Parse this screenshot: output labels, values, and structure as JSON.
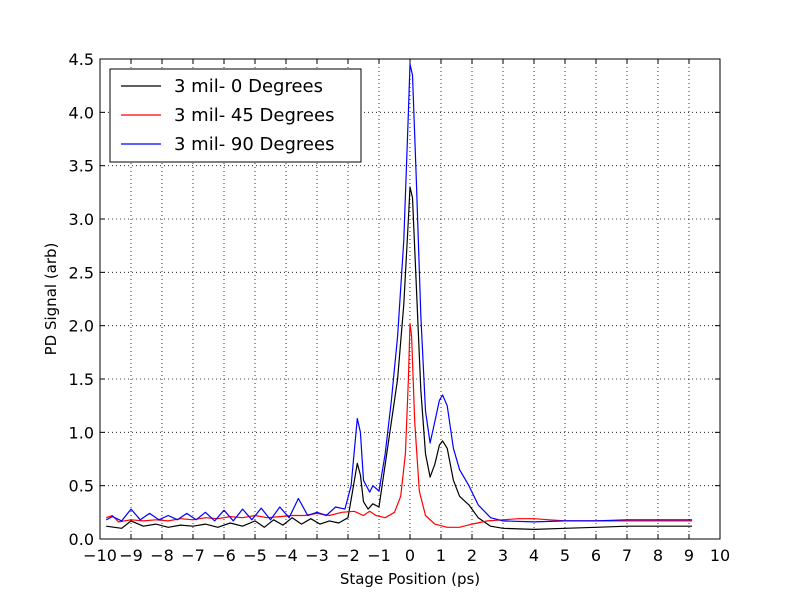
{
  "chart_data": {
    "type": "line",
    "xlabel": "Stage Position (ps)",
    "ylabel": "PD Signal (arb)",
    "xlim": [
      -10,
      10
    ],
    "ylim": [
      0.0,
      4.5
    ],
    "grid": true,
    "legend_placement": "top-left",
    "x_ticks": [
      "−10",
      "−9",
      "−8",
      "−7",
      "−6",
      "−5",
      "−4",
      "−3",
      "−2",
      "−1",
      "0",
      "1",
      "2",
      "3",
      "4",
      "5",
      "6",
      "7",
      "8",
      "9",
      "10"
    ],
    "y_ticks": [
      "0.0",
      "0.5",
      "1.0",
      "1.5",
      "2.0",
      "2.5",
      "3.0",
      "3.5",
      "4.0",
      "4.5"
    ],
    "series": [
      {
        "name": "3 mil- 0 Degrees",
        "color": "#000000",
        "points": [
          [
            -9.8,
            0.12
          ],
          [
            -9.3,
            0.1
          ],
          [
            -9.0,
            0.17
          ],
          [
            -8.6,
            0.12
          ],
          [
            -8.2,
            0.14
          ],
          [
            -7.8,
            0.11
          ],
          [
            -7.4,
            0.13
          ],
          [
            -7.0,
            0.12
          ],
          [
            -6.6,
            0.14
          ],
          [
            -6.2,
            0.11
          ],
          [
            -5.8,
            0.15
          ],
          [
            -5.4,
            0.12
          ],
          [
            -5.0,
            0.17
          ],
          [
            -4.7,
            0.11
          ],
          [
            -4.4,
            0.18
          ],
          [
            -4.1,
            0.13
          ],
          [
            -3.8,
            0.2
          ],
          [
            -3.5,
            0.14
          ],
          [
            -3.2,
            0.19
          ],
          [
            -2.9,
            0.14
          ],
          [
            -2.6,
            0.17
          ],
          [
            -2.3,
            0.15
          ],
          [
            -2.0,
            0.2
          ],
          [
            -1.85,
            0.45
          ],
          [
            -1.7,
            0.71
          ],
          [
            -1.6,
            0.6
          ],
          [
            -1.5,
            0.35
          ],
          [
            -1.35,
            0.28
          ],
          [
            -1.2,
            0.33
          ],
          [
            -1.0,
            0.3
          ],
          [
            -0.8,
            0.7
          ],
          [
            -0.6,
            1.1
          ],
          [
            -0.4,
            1.5
          ],
          [
            -0.2,
            2.2
          ],
          [
            -0.05,
            3.0
          ],
          [
            0.0,
            3.3
          ],
          [
            0.08,
            3.2
          ],
          [
            0.2,
            2.4
          ],
          [
            0.35,
            1.4
          ],
          [
            0.5,
            0.8
          ],
          [
            0.65,
            0.58
          ],
          [
            0.8,
            0.7
          ],
          [
            0.95,
            0.88
          ],
          [
            1.05,
            0.92
          ],
          [
            1.2,
            0.85
          ],
          [
            1.4,
            0.55
          ],
          [
            1.6,
            0.4
          ],
          [
            1.9,
            0.32
          ],
          [
            2.2,
            0.2
          ],
          [
            2.6,
            0.12
          ],
          [
            3.0,
            0.1
          ],
          [
            4.0,
            0.09
          ],
          [
            5.0,
            0.1
          ],
          [
            6.0,
            0.11
          ],
          [
            7.0,
            0.12
          ],
          [
            8.0,
            0.12
          ],
          [
            9.1,
            0.12
          ]
        ]
      },
      {
        "name": "3 mil- 45 Degrees",
        "color": "#ff0000",
        "points": [
          [
            -9.8,
            0.2
          ],
          [
            -9.6,
            0.22
          ],
          [
            -9.4,
            0.16
          ],
          [
            -9.0,
            0.18
          ],
          [
            -8.6,
            0.17
          ],
          [
            -8.2,
            0.18
          ],
          [
            -7.8,
            0.17
          ],
          [
            -7.4,
            0.19
          ],
          [
            -7.0,
            0.18
          ],
          [
            -6.6,
            0.2
          ],
          [
            -6.2,
            0.19
          ],
          [
            -5.8,
            0.21
          ],
          [
            -5.4,
            0.2
          ],
          [
            -5.0,
            0.22
          ],
          [
            -4.6,
            0.2
          ],
          [
            -4.2,
            0.21
          ],
          [
            -3.8,
            0.22
          ],
          [
            -3.4,
            0.22
          ],
          [
            -3.0,
            0.24
          ],
          [
            -2.6,
            0.22
          ],
          [
            -2.2,
            0.25
          ],
          [
            -1.8,
            0.26
          ],
          [
            -1.5,
            0.22
          ],
          [
            -1.3,
            0.26
          ],
          [
            -1.1,
            0.22
          ],
          [
            -0.8,
            0.2
          ],
          [
            -0.5,
            0.25
          ],
          [
            -0.3,
            0.4
          ],
          [
            -0.15,
            0.8
          ],
          [
            -0.05,
            1.5
          ],
          [
            0.0,
            2.02
          ],
          [
            0.05,
            1.9
          ],
          [
            0.15,
            1.1
          ],
          [
            0.3,
            0.45
          ],
          [
            0.5,
            0.22
          ],
          [
            0.8,
            0.14
          ],
          [
            1.2,
            0.11
          ],
          [
            1.6,
            0.11
          ],
          [
            2.0,
            0.14
          ],
          [
            2.5,
            0.17
          ],
          [
            3.0,
            0.18
          ],
          [
            3.5,
            0.19
          ],
          [
            4.0,
            0.19
          ],
          [
            4.5,
            0.18
          ],
          [
            5.0,
            0.17
          ],
          [
            6.0,
            0.17
          ],
          [
            7.0,
            0.17
          ],
          [
            8.0,
            0.17
          ],
          [
            9.1,
            0.17
          ]
        ]
      },
      {
        "name": "3 mil- 90 Degrees",
        "color": "#0000ff",
        "points": [
          [
            -9.8,
            0.18
          ],
          [
            -9.6,
            0.21
          ],
          [
            -9.3,
            0.17
          ],
          [
            -9.0,
            0.28
          ],
          [
            -8.7,
            0.18
          ],
          [
            -8.4,
            0.24
          ],
          [
            -8.1,
            0.18
          ],
          [
            -7.8,
            0.22
          ],
          [
            -7.5,
            0.18
          ],
          [
            -7.2,
            0.24
          ],
          [
            -6.9,
            0.18
          ],
          [
            -6.6,
            0.25
          ],
          [
            -6.3,
            0.17
          ],
          [
            -6.0,
            0.27
          ],
          [
            -5.7,
            0.17
          ],
          [
            -5.4,
            0.28
          ],
          [
            -5.1,
            0.18
          ],
          [
            -4.8,
            0.29
          ],
          [
            -4.5,
            0.18
          ],
          [
            -4.2,
            0.3
          ],
          [
            -3.9,
            0.2
          ],
          [
            -3.6,
            0.38
          ],
          [
            -3.3,
            0.22
          ],
          [
            -3.0,
            0.25
          ],
          [
            -2.7,
            0.22
          ],
          [
            -2.4,
            0.3
          ],
          [
            -2.1,
            0.28
          ],
          [
            -1.9,
            0.5
          ],
          [
            -1.7,
            1.13
          ],
          [
            -1.6,
            1.0
          ],
          [
            -1.5,
            0.55
          ],
          [
            -1.3,
            0.44
          ],
          [
            -1.2,
            0.5
          ],
          [
            -1.0,
            0.45
          ],
          [
            -0.8,
            0.8
          ],
          [
            -0.6,
            1.3
          ],
          [
            -0.4,
            1.9
          ],
          [
            -0.2,
            2.8
          ],
          [
            -0.05,
            4.0
          ],
          [
            0.0,
            4.45
          ],
          [
            0.08,
            4.35
          ],
          [
            0.2,
            3.4
          ],
          [
            0.35,
            2.1
          ],
          [
            0.5,
            1.2
          ],
          [
            0.65,
            0.9
          ],
          [
            0.8,
            1.1
          ],
          [
            0.95,
            1.3
          ],
          [
            1.05,
            1.35
          ],
          [
            1.2,
            1.25
          ],
          [
            1.4,
            0.85
          ],
          [
            1.6,
            0.65
          ],
          [
            1.9,
            0.5
          ],
          [
            2.2,
            0.32
          ],
          [
            2.6,
            0.2
          ],
          [
            3.0,
            0.17
          ],
          [
            4.0,
            0.16
          ],
          [
            5.0,
            0.17
          ],
          [
            6.0,
            0.17
          ],
          [
            7.0,
            0.18
          ],
          [
            8.0,
            0.18
          ],
          [
            9.1,
            0.18
          ]
        ]
      }
    ]
  }
}
